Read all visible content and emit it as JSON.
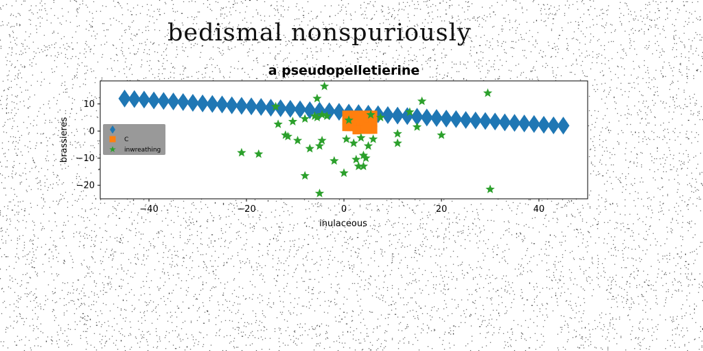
{
  "suptitle": "bedismal nonspuriously",
  "colors": {
    "series1": "#1f77b4",
    "series2": "#ff7f0e",
    "series3": "#2ca02c",
    "legend_bg": "#999999"
  },
  "chart_data": {
    "type": "scatter",
    "title": "a pseudopelletierine",
    "xlabel": "inulaceous",
    "ylabel": "brassieres",
    "xlim": [
      -50,
      50
    ],
    "ylim": [
      -25,
      18.5
    ],
    "xticks": [
      -40,
      -20,
      0,
      20,
      40
    ],
    "yticks": [
      -20,
      -10,
      0,
      10
    ],
    "xtick_labels": [
      "−40",
      "−20",
      "0",
      "20",
      "40"
    ],
    "ytick_labels": [
      "−20",
      "−10",
      "0",
      "10"
    ],
    "grid": false,
    "legend_position": "center-left",
    "series": [
      {
        "name": "",
        "marker": "diamond",
        "color": "#1f77b4",
        "x": [
          -45,
          -43,
          -41,
          -39,
          -37,
          -35,
          -33,
          -31,
          -29,
          -27,
          -25,
          -23,
          -21,
          -19,
          -17,
          -15,
          -13,
          -11,
          -9,
          -7,
          -5,
          -3,
          -1,
          1,
          3,
          5,
          7,
          9,
          11,
          13,
          15,
          17,
          19,
          21,
          23,
          25,
          27,
          29,
          31,
          33,
          35,
          37,
          39,
          41,
          43,
          45
        ],
        "y": [
          12,
          11.8,
          11.6,
          11.3,
          11.1,
          10.9,
          10.7,
          10.4,
          10.2,
          10,
          9.8,
          9.5,
          9.3,
          9.1,
          8.9,
          8.6,
          8.4,
          8.2,
          8,
          7.7,
          7.5,
          7.3,
          7.1,
          6.8,
          6.6,
          6.4,
          6.2,
          5.9,
          5.7,
          5.5,
          5.3,
          5,
          4.8,
          4.6,
          4.4,
          4.1,
          3.9,
          3.7,
          3.5,
          3.2,
          3,
          2.8,
          2.6,
          2.3,
          2.1,
          2
        ]
      },
      {
        "name": "C",
        "marker": "square",
        "color": "#ff7f0e",
        "x": [
          0.5,
          1,
          1.5,
          2,
          2.5,
          3,
          0.5,
          1,
          1.5,
          2,
          2.5,
          3,
          0.5,
          1,
          1.5,
          2,
          2.5,
          3,
          3.5,
          4,
          4.5,
          5,
          5.5,
          6,
          3.5,
          4,
          4.5,
          5,
          5.5,
          6,
          3.5,
          4,
          4.5,
          5,
          5.5,
          6,
          0.7,
          1.8,
          3.2,
          4.8,
          5.8,
          2.6
        ],
        "y": [
          6,
          6,
          6,
          6,
          6,
          6,
          3.5,
          3.5,
          3.5,
          3.5,
          3.5,
          3.5,
          1.5,
          1.5,
          1.5,
          1.5,
          1.5,
          1.5,
          6,
          6,
          6,
          6,
          6,
          6,
          3,
          3,
          3,
          3,
          3,
          3,
          0.5,
          0.5,
          0.5,
          0.5,
          0.5,
          0.5,
          4.8,
          2.4,
          4.5,
          1.8,
          4.2,
          0.3
        ]
      },
      {
        "name": "inwreathing",
        "marker": "star",
        "color": "#2ca02c",
        "x": [
          -4,
          -5.5,
          -14,
          -13.5,
          -12,
          -11.5,
          -10.5,
          -9.5,
          -8,
          -7,
          -6,
          -5,
          -5.5,
          -4.5,
          -3.5,
          -8,
          -5,
          -2,
          0,
          -21,
          -17.5,
          -4.5,
          1,
          0.5,
          2,
          4,
          4.5,
          5,
          5.5,
          3,
          2.5,
          3.5,
          4,
          6,
          7.5,
          11,
          11,
          13.5,
          15,
          16,
          20,
          29.5,
          30
        ],
        "y": [
          16.5,
          12,
          9,
          2.5,
          -1.5,
          -2,
          3.5,
          -3.5,
          4.5,
          -6.5,
          5.5,
          -5.5,
          5,
          6,
          5.5,
          -16.5,
          -23,
          -11,
          -15.5,
          -8,
          -8.5,
          -3.5,
          4,
          -3,
          -4.5,
          -9,
          -10,
          -5.5,
          6,
          -13,
          -10.5,
          -2.5,
          -13,
          -3,
          5,
          -1,
          -4.5,
          7,
          1.5,
          11,
          -1.5,
          14,
          -21.5
        ]
      }
    ]
  }
}
